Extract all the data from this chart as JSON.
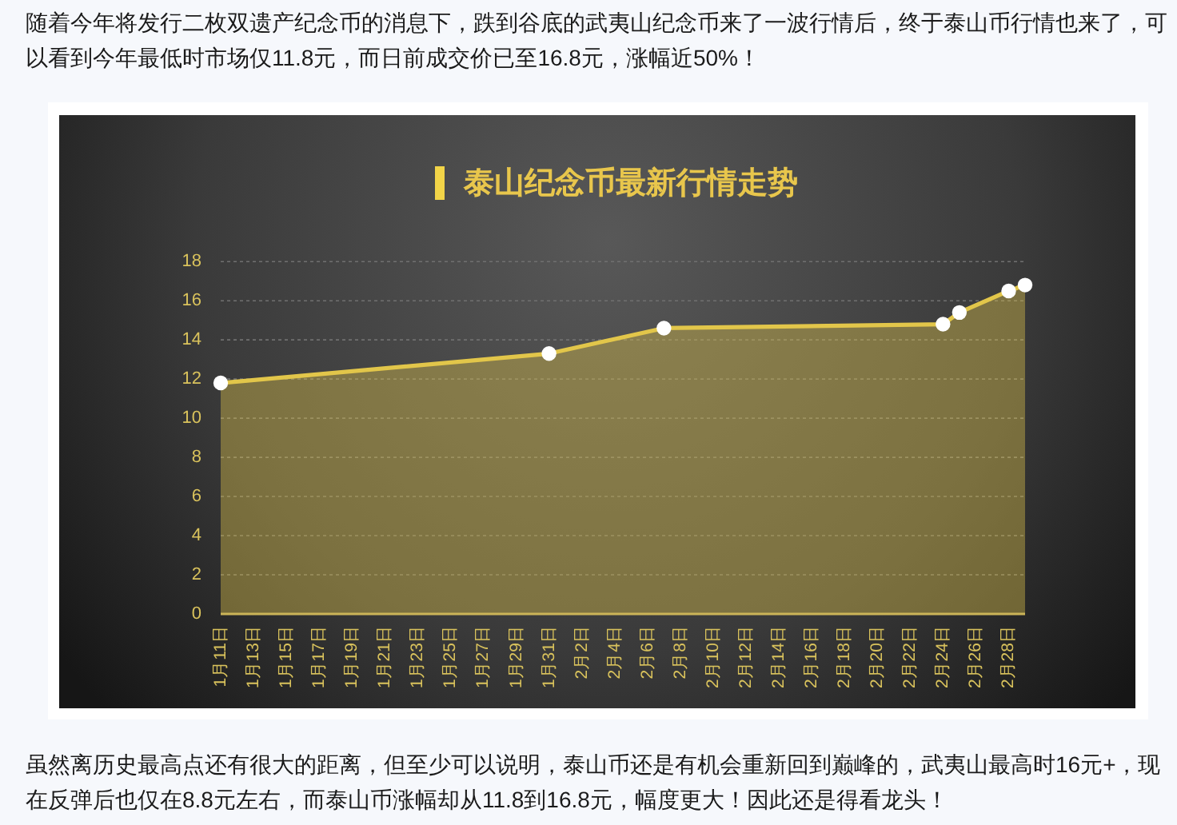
{
  "chart_data": {
    "type": "area",
    "title": "泰山纪念币最新行情走势",
    "x": [
      "--01-11",
      "--01-31",
      "--02-07",
      "--02-24",
      "--02-25",
      "--02-28",
      "--02-29"
    ],
    "series": [
      {
        "color": "#e2c64a",
        "values": [
          11.8,
          13.3,
          14.6,
          14.8,
          15.4,
          16.5,
          16.8
        ]
      },
      {
        "type": "scatter",
        "color": "#ffffff",
        "marker": "circle",
        "values": [
          11.8,
          13.3,
          14.6,
          14.8,
          15.4,
          16.5,
          16.8
        ]
      }
    ],
    "grid": "y",
    "ylim": [
      0,
      18
    ],
    "yticks": [
      0,
      2,
      4,
      6,
      8,
      10,
      12,
      14,
      16,
      18
    ],
    "xlim": [
      "--01-11",
      "--02-29"
    ],
    "xticks": [
      {
        "value": "--01-11",
        "label": "1月11日"
      },
      {
        "value": "--01-13",
        "label": "1月13日"
      },
      {
        "value": "--01-15",
        "label": "1月15日"
      },
      {
        "value": "--01-17",
        "label": "1月17日"
      },
      {
        "value": "--01-19",
        "label": "1月19日"
      },
      {
        "value": "--01-21",
        "label": "1月21日"
      },
      {
        "value": "--01-23",
        "label": "1月23日"
      },
      {
        "value": "--01-25",
        "label": "1月25日"
      },
      {
        "value": "--01-27",
        "label": "1月27日"
      },
      {
        "value": "--01-29",
        "label": "1月29日"
      },
      {
        "value": "--01-31",
        "label": "1月31日"
      },
      {
        "value": "--02-02",
        "label": "2月2日"
      },
      {
        "value": "--02-04",
        "label": "2月4日"
      },
      {
        "value": "--02-06",
        "label": "2月6日"
      },
      {
        "value": "--02-08",
        "label": "2月8日"
      },
      {
        "value": "--02-10",
        "label": "2月10日"
      },
      {
        "value": "--02-12",
        "label": "2月12日"
      },
      {
        "value": "--02-14",
        "label": "2月14日"
      },
      {
        "value": "--02-16",
        "label": "2月16日"
      },
      {
        "value": "--02-18",
        "label": "2月18日"
      },
      {
        "value": "--02-20",
        "label": "2月20日"
      },
      {
        "value": "--02-22",
        "label": "2月22日"
      },
      {
        "value": "--02-24",
        "label": "2月24日"
      },
      {
        "value": "--02-26",
        "label": "2月26日"
      },
      {
        "value": "--02-28",
        "label": "2月28日"
      }
    ],
    "annotations": [
      "随着今年将发行二枚双遗产纪念币的消息下，跌到谷底的武夷山纪念币来了一波行情后，终于泰山币行情也来了，可以看到今年最低时市场仅11.8元，而日前成交价已至16.8元，涨幅近50%！",
      "虽然离历史最高点还有很大的距离，但至少可以说明，泰山币还是有机会重新回到巅峰的，武夷山最高时16元+，现在反弹后也仅在8.8元左右，而泰山币涨幅却从11.8到16.8元，幅度更大！因此还是得看龙头！"
    ]
  }
}
